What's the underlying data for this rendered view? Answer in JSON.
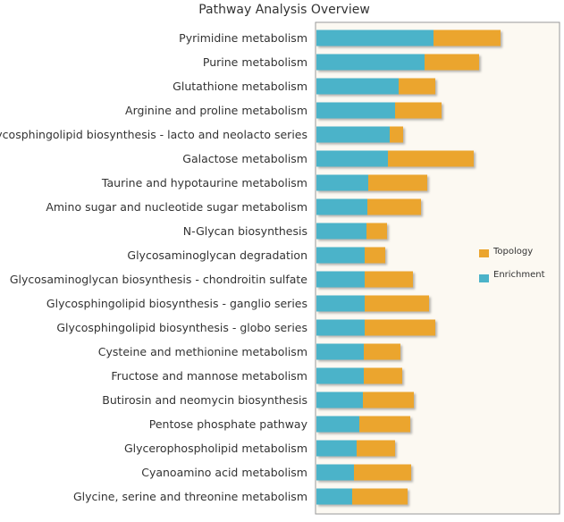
{
  "chart_data": {
    "type": "bar",
    "stacked": true,
    "orientation": "horizontal",
    "title": "Pathway Analysis Overview",
    "xlabel": "",
    "ylabel": "",
    "grid": false,
    "legend_position": "right",
    "categories": [
      "Pyrimidine metabolism",
      "Purine metabolism",
      "Glutathione metabolism",
      "Arginine and proline metabolism",
      "Glycosphingolipid biosynthesis - lacto and neolacto series",
      "Galactose metabolism",
      "Taurine and hypotaurine metabolism",
      "Amino sugar and nucleotide sugar metabolism",
      "N-Glycan biosynthesis",
      "Glycosaminoglycan degradation",
      "Glycosaminoglycan biosynthesis - chondroitin sulfate",
      "Glycosphingolipid biosynthesis - ganglio series",
      "Glycosphingolipid biosynthesis - globo series",
      "Cysteine and methionine metabolism",
      "Fructose and mannose metabolism",
      "Butirosin and neomycin biosynthesis",
      "Pentose phosphate pathway",
      "Glycerophospholipid metabolism",
      "Cyanoamino acid metabolism",
      "Glycine, serine and threonine metabolism"
    ],
    "series": [
      {
        "name": "Enrichment",
        "color": "#4bb3c9",
        "values": [
          131,
          121,
          92,
          88,
          82,
          80,
          58,
          57,
          56,
          54,
          54,
          54,
          54,
          53,
          53,
          52,
          48,
          45,
          42,
          40
        ]
      },
      {
        "name": "Topology",
        "color": "#eba52f",
        "values": [
          75,
          61,
          41,
          52,
          15,
          96,
          66,
          60,
          23,
          23,
          54,
          72,
          79,
          41,
          43,
          57,
          57,
          43,
          64,
          62
        ]
      }
    ],
    "legend": [
      {
        "label": "Topology",
        "color": "#eba52f"
      },
      {
        "label": "Enrichment",
        "color": "#4bb3c9"
      }
    ]
  }
}
